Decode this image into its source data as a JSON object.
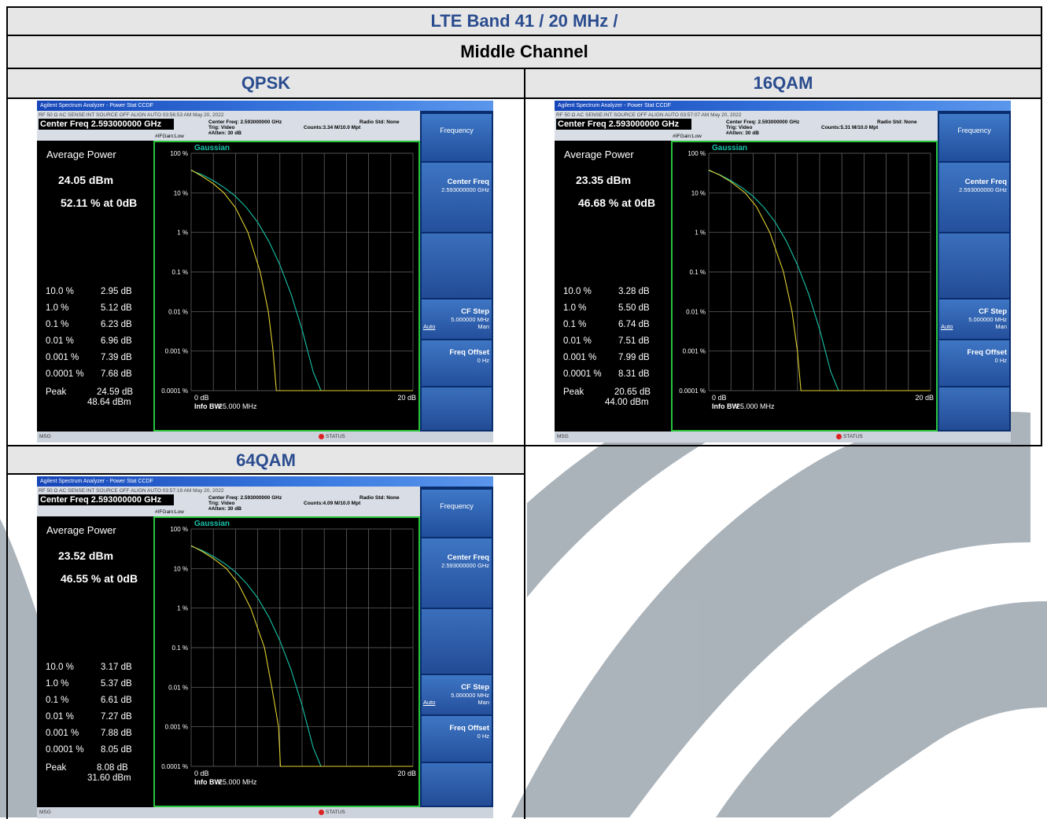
{
  "header": {
    "band": "LTE Band 41 / 20 MHz /",
    "channel": "Middle Channel"
  },
  "watermark_colors": [
    "#a6afb7"
  ],
  "panels": [
    {
      "label": "QPSK",
      "window_title": "Agilent Spectrum Analyzer - Power Stat CCDF",
      "top_status": "RF    50 Ω  AC        SENSE:INT SOURCE OFF    ALIGN AUTO    03:56:53 AM May 20, 2022",
      "center_freq_box": "Center Freq 2.593000000 GHz",
      "info_center": "Center Freq: 2.593000000 GHz",
      "info_trig": "Trig: Video",
      "info_atten": "#Atten: 30 dB",
      "info_counts": "Counts:3.34 M/10.0 Mpt",
      "info_radio": "Radio Std: None",
      "ifgain": "#IFGain:Low",
      "avg_title": "Average Power",
      "avg_power": "24.05 dBm",
      "avg_pct": "52.11 % at 0dB",
      "stats": [
        {
          "pct": "10.0 %",
          "val": "2.95 dB"
        },
        {
          "pct": "1.0 %",
          "val": "5.12 dB"
        },
        {
          "pct": "0.1 %",
          "val": "6.23 dB"
        },
        {
          "pct": "0.01 %",
          "val": "6.96 dB"
        },
        {
          "pct": "0.001 %",
          "val": "7.39 dB"
        },
        {
          "pct": "0.0001 %",
          "val": "7.68 dB"
        }
      ],
      "peak_label": "Peak",
      "peak_db": "24.59 dB",
      "peak_dbm": "48.64 dBm",
      "plot": {
        "legend": "Gaussian",
        "y_ticks": [
          "100 %",
          "10 %",
          "1 %",
          "0.1 %",
          "0.01 %",
          "0.001 %",
          "0.0001 %"
        ],
        "x_left": "0 dB",
        "x_right": "20 dB",
        "info_bw_label": "Info BW",
        "info_bw_value": "25.000 MHz"
      },
      "softkeys": {
        "menu": "Frequency",
        "center_freq_label": "Center Freq",
        "center_freq_value": "2.593000000 GHz",
        "cf_step_label": "CF Step",
        "cf_step_value": "5.000000 MHz",
        "cf_step_auto": "Auto",
        "cf_step_man": "Man",
        "freq_offset_label": "Freq Offset",
        "freq_offset_value": "0 Hz"
      },
      "bottom_msg": "MSG",
      "bottom_status": "STATUS"
    },
    {
      "label": "16QAM",
      "window_title": "Agilent Spectrum Analyzer - Power Stat CCDF",
      "top_status": "RF    50 Ω  AC        SENSE:INT SOURCE OFF    ALIGN AUTO    03:57:07 AM May 20, 2022",
      "center_freq_box": "Center Freq 2.593000000 GHz",
      "info_center": "Center Freq: 2.593000000 GHz",
      "info_trig": "Trig: Video",
      "info_atten": "#Atten: 30 dB",
      "info_counts": "Counts:5.31 M/10.0 Mpt",
      "info_radio": "Radio Std: None",
      "ifgain": "#IFGain:Low",
      "avg_title": "Average Power",
      "avg_power": "23.35 dBm",
      "avg_pct": "46.68 % at 0dB",
      "stats": [
        {
          "pct": "10.0 %",
          "val": "3.28 dB"
        },
        {
          "pct": "1.0 %",
          "val": "5.50 dB"
        },
        {
          "pct": "0.1 %",
          "val": "6.74 dB"
        },
        {
          "pct": "0.01 %",
          "val": "7.51 dB"
        },
        {
          "pct": "0.001 %",
          "val": "7.99 dB"
        },
        {
          "pct": "0.0001 %",
          "val": "8.31 dB"
        }
      ],
      "peak_label": "Peak",
      "peak_db": "20.65 dB",
      "peak_dbm": "44.00 dBm",
      "plot": {
        "legend": "Gaussian",
        "y_ticks": [
          "100 %",
          "10 %",
          "1 %",
          "0.1 %",
          "0.01 %",
          "0.001 %",
          "0.0001 %"
        ],
        "x_left": "0 dB",
        "x_right": "20 dB",
        "info_bw_label": "Info BW",
        "info_bw_value": "25.000 MHz"
      },
      "softkeys": {
        "menu": "Frequency",
        "center_freq_label": "Center Freq",
        "center_freq_value": "2.593000000 GHz",
        "cf_step_label": "CF Step",
        "cf_step_value": "5.000000 MHz",
        "cf_step_auto": "Auto",
        "cf_step_man": "Man",
        "freq_offset_label": "Freq Offset",
        "freq_offset_value": "0 Hz"
      },
      "bottom_msg": "MSG",
      "bottom_status": "STATUS"
    },
    {
      "label": "64QAM",
      "window_title": "Agilent Spectrum Analyzer - Power Stat CCDF",
      "top_status": "RF    50 Ω  AC        SENSE:INT SOURCE OFF    ALIGN AUTO    03:57:19 AM May 20, 2022",
      "center_freq_box": "Center Freq 2.593000000 GHz",
      "info_center": "Center Freq: 2.593000000 GHz",
      "info_trig": "Trig: Video",
      "info_atten": "#Atten: 30 dB",
      "info_counts": "Counts:4.09 M/10.0 Mpt",
      "info_radio": "Radio Std: None",
      "ifgain": "#IFGain:Low",
      "avg_title": "Average Power",
      "avg_power": "23.52 dBm",
      "avg_pct": "46.55 % at 0dB",
      "stats": [
        {
          "pct": "10.0 %",
          "val": "3.17 dB"
        },
        {
          "pct": "1.0 %",
          "val": "5.37 dB"
        },
        {
          "pct": "0.1 %",
          "val": "6.61 dB"
        },
        {
          "pct": "0.01 %",
          "val": "7.27 dB"
        },
        {
          "pct": "0.001 %",
          "val": "7.88 dB"
        },
        {
          "pct": "0.0001 %",
          "val": "8.05 dB"
        }
      ],
      "peak_label": "Peak",
      "peak_db": "8.08 dB",
      "peak_dbm": "31.60 dBm",
      "plot": {
        "legend": "Gaussian",
        "y_ticks": [
          "100 %",
          "10 %",
          "1 %",
          "0.1 %",
          "0.01 %",
          "0.001 %",
          "0.0001 %"
        ],
        "x_left": "0 dB",
        "x_right": "20 dB",
        "info_bw_label": "Info BW",
        "info_bw_value": "25.000 MHz"
      },
      "softkeys": {
        "menu": "Frequency",
        "center_freq_label": "Center Freq",
        "center_freq_value": "2.593000000 GHz",
        "cf_step_label": "CF Step",
        "cf_step_value": "5.000000 MHz",
        "cf_step_auto": "Auto",
        "cf_step_man": "Man",
        "freq_offset_label": "Freq Offset",
        "freq_offset_value": "0 Hz"
      },
      "bottom_msg": "MSG",
      "bottom_status": "STATUS"
    }
  ],
  "chart_data": [
    {
      "type": "line",
      "x_range_db": [
        0,
        20
      ],
      "y_scale": "log",
      "y_range_pct": [
        0.0001,
        100
      ],
      "series": [
        {
          "name": "Gaussian",
          "color": "#17c2a8",
          "x": [
            0,
            1,
            2,
            3,
            4,
            5,
            6,
            7,
            8,
            9,
            10,
            11,
            11.7
          ],
          "y": [
            36.8,
            28.5,
            20.3,
            13.5,
            8.2,
            4.2,
            1.8,
            0.6,
            0.15,
            0.028,
            0.0035,
            0.0003,
            0.0001
          ]
        },
        {
          "color": "#e0d030",
          "x": [
            0,
            1,
            2,
            2.95,
            4,
            5.12,
            6.23,
            6.96,
            7.39,
            7.68,
            8.3
          ],
          "y": [
            38,
            26,
            17,
            10,
            4.2,
            1,
            0.1,
            0.01,
            0.001,
            0.0001,
            0.0001
          ]
        }
      ],
      "grid": true
    },
    {
      "type": "line",
      "x_range_db": [
        0,
        20
      ],
      "y_scale": "log",
      "y_range_pct": [
        0.0001,
        100
      ],
      "series": [
        {
          "name": "Gaussian",
          "color": "#17c2a8",
          "x": [
            0,
            1,
            2,
            3,
            4,
            5,
            6,
            7,
            8,
            9,
            10,
            11,
            11.7
          ],
          "y": [
            36.8,
            28.5,
            20.3,
            13.5,
            8.2,
            4.2,
            1.8,
            0.6,
            0.15,
            0.028,
            0.0035,
            0.0003,
            0.0001
          ]
        },
        {
          "color": "#e0d030",
          "x": [
            0,
            1,
            2,
            3.28,
            4.3,
            5.5,
            6.74,
            7.51,
            7.99,
            8.31,
            8.6
          ],
          "y": [
            38,
            28,
            19,
            10,
            4.5,
            1,
            0.1,
            0.01,
            0.001,
            0.0001,
            0.0001
          ]
        }
      ],
      "grid": true
    },
    {
      "type": "line",
      "x_range_db": [
        0,
        20
      ],
      "y_scale": "log",
      "y_range_pct": [
        0.0001,
        100
      ],
      "series": [
        {
          "name": "Gaussian",
          "color": "#17c2a8",
          "x": [
            0,
            1,
            2,
            3,
            4,
            5,
            6,
            7,
            8,
            9,
            10,
            11,
            11.7
          ],
          "y": [
            36.8,
            28.5,
            20.3,
            13.5,
            8.2,
            4.2,
            1.8,
            0.6,
            0.15,
            0.028,
            0.0035,
            0.0003,
            0.0001
          ]
        },
        {
          "color": "#e0d030",
          "x": [
            0,
            1,
            2,
            3.17,
            4.2,
            5.37,
            6.61,
            7.27,
            7.88,
            8.05,
            8.08
          ],
          "y": [
            38,
            27,
            18,
            10,
            4.4,
            1,
            0.1,
            0.01,
            0.001,
            0.0001,
            0.0001
          ]
        }
      ],
      "grid": true
    }
  ]
}
